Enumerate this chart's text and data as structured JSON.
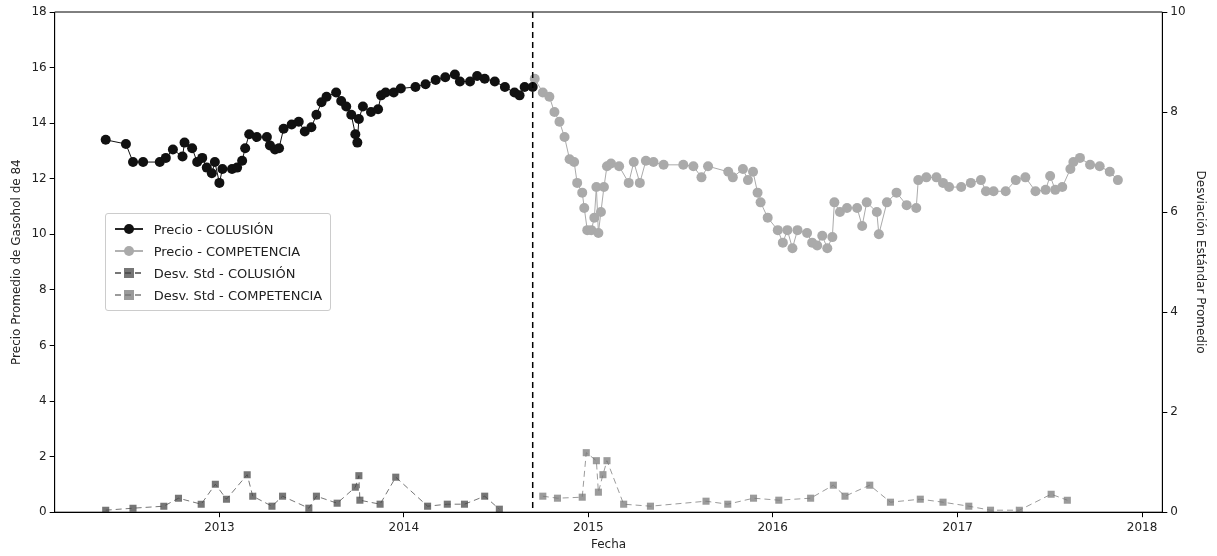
{
  "chart_data": {
    "type": "line",
    "xlabel": "Fecha",
    "ylabel": "Precio Promedio de Gasohol de 84",
    "y2label": "Desviación Estándar Promedio",
    "xlim": [
      "2012-02-10",
      "2018-02-10"
    ],
    "xticks": [
      "2013",
      "2014",
      "2015",
      "2016",
      "2017",
      "2018"
    ],
    "ylim": [
      0,
      18
    ],
    "yticks": [
      0,
      2,
      4,
      6,
      8,
      10,
      12,
      14,
      16,
      18
    ],
    "y2lim": [
      0,
      10
    ],
    "y2ticks": [
      0,
      2,
      4,
      6,
      8,
      10
    ],
    "grid": false,
    "legend": "left",
    "ref_lines": [
      {
        "axis": "x",
        "value": "2014-09-13",
        "label": null,
        "color": "#000000",
        "line_style": "dashed"
      }
    ],
    "series": [
      {
        "name": "Precio - COLUSIÓN",
        "color": "#111111",
        "marker": "circle",
        "line_style": "solid",
        "x": [
          "2012-05-21",
          "2012-06-30",
          "2012-07-14",
          "2012-08-03",
          "2012-09-05",
          "2012-09-17",
          "2012-10-01",
          "2012-10-20",
          "2012-10-24",
          "2012-11-08",
          "2012-11-18",
          "2012-11-28",
          "2012-12-07",
          "2012-12-17",
          "2012-12-23",
          "2013-01-01",
          "2013-01-07",
          "2013-01-26",
          "2013-02-05",
          "2013-02-15",
          "2013-02-21",
          "2013-03-01",
          "2013-03-16",
          "2013-04-05",
          "2013-04-11",
          "2013-04-21",
          "2013-04-29",
          "2013-05-08",
          "2013-05-24",
          "2013-06-07",
          "2013-06-19",
          "2013-07-02",
          "2013-07-12",
          "2013-07-22",
          "2013-08-01",
          "2013-08-20",
          "2013-08-30",
          "2013-09-09",
          "2013-09-19",
          "2013-09-27",
          "2013-10-01",
          "2013-10-04",
          "2013-10-12",
          "2013-10-28",
          "2013-11-11",
          "2013-11-17",
          "2013-11-26",
          "2013-12-12",
          "2013-12-26",
          "2014-01-24",
          "2014-02-13",
          "2014-03-05",
          "2014-03-24",
          "2014-04-12",
          "2014-04-22",
          "2014-05-12",
          "2014-05-26",
          "2014-06-10",
          "2014-06-30",
          "2014-07-20",
          "2014-08-08",
          "2014-08-18",
          "2014-08-28",
          "2014-09-13"
        ],
        "values": [
          13.4,
          13.25,
          12.6,
          12.6,
          12.6,
          12.75,
          13.05,
          12.8,
          13.3,
          13.1,
          12.6,
          12.75,
          12.4,
          12.2,
          12.6,
          11.85,
          12.35,
          12.35,
          12.4,
          12.65,
          13.1,
          13.6,
          13.5,
          13.5,
          13.2,
          13.05,
          13.1,
          13.8,
          13.95,
          14.05,
          13.7,
          13.85,
          14.3,
          14.75,
          14.95,
          15.1,
          14.8,
          14.6,
          14.3,
          13.6,
          13.3,
          14.15,
          14.6,
          14.4,
          14.5,
          15.0,
          15.1,
          15.1,
          15.25,
          15.3,
          15.4,
          15.55,
          15.65,
          15.75,
          15.5,
          15.5,
          15.7,
          15.6,
          15.5,
          15.3,
          15.1,
          15.0,
          15.3,
          15.3
        ]
      },
      {
        "name": "Precio - COMPETENCIA",
        "color": "#aaaaaa",
        "marker": "circle",
        "line_style": "solid",
        "x": [
          "2014-09-17",
          "2014-10-03",
          "2014-10-16",
          "2014-10-26",
          "2014-11-05",
          "2014-11-15",
          "2014-11-25",
          "2014-12-04",
          "2014-12-10",
          "2014-12-20",
          "2014-12-24",
          "2014-12-30",
          "2015-01-07",
          "2015-01-13",
          "2015-01-17",
          "2015-01-21",
          "2015-01-26",
          "2015-02-01",
          "2015-02-07",
          "2015-02-15",
          "2015-03-03",
          "2015-03-22",
          "2015-04-01",
          "2015-04-13",
          "2015-04-25",
          "2015-05-10",
          "2015-05-30",
          "2015-07-08",
          "2015-07-28",
          "2015-08-13",
          "2015-08-26",
          "2015-10-05",
          "2015-10-14",
          "2015-11-03",
          "2015-11-13",
          "2015-11-23",
          "2015-12-02",
          "2015-12-08",
          "2015-12-22",
          "2016-01-11",
          "2016-01-21",
          "2016-01-30",
          "2016-02-09",
          "2016-02-19",
          "2016-03-09",
          "2016-03-19",
          "2016-03-29",
          "2016-04-08",
          "2016-04-18",
          "2016-04-28",
          "2016-05-02",
          "2016-05-13",
          "2016-05-27",
          "2016-06-16",
          "2016-06-26",
          "2016-07-05",
          "2016-07-25",
          "2016-07-29",
          "2016-08-14",
          "2016-09-02",
          "2016-09-22",
          "2016-10-11",
          "2016-10-15",
          "2016-10-31",
          "2016-11-20",
          "2016-12-03",
          "2016-12-15",
          "2017-01-08",
          "2017-01-27",
          "2017-02-16",
          "2017-02-26",
          "2017-03-13",
          "2017-04-06",
          "2017-04-26",
          "2017-05-15",
          "2017-06-04",
          "2017-06-24",
          "2017-07-03",
          "2017-07-13",
          "2017-07-27",
          "2017-08-12",
          "2017-08-18",
          "2017-08-31",
          "2017-09-20",
          "2017-10-09",
          "2017-10-29",
          "2017-11-14"
        ],
        "values": [
          15.6,
          15.1,
          14.95,
          14.4,
          14.05,
          13.5,
          12.7,
          12.6,
          11.85,
          11.5,
          10.95,
          10.15,
          10.15,
          10.6,
          11.7,
          10.05,
          10.8,
          11.7,
          12.45,
          12.55,
          12.45,
          11.85,
          12.6,
          11.85,
          12.65,
          12.6,
          12.5,
          12.5,
          12.45,
          12.05,
          12.45,
          12.25,
          12.05,
          12.35,
          11.95,
          12.25,
          11.5,
          11.15,
          10.6,
          10.15,
          9.7,
          10.15,
          9.5,
          10.15,
          10.05,
          9.7,
          9.6,
          9.95,
          9.5,
          9.9,
          11.15,
          10.8,
          10.95,
          10.95,
          10.3,
          11.15,
          10.8,
          10.0,
          11.15,
          11.5,
          11.05,
          10.95,
          11.95,
          12.05,
          12.05,
          11.85,
          11.7,
          11.7,
          11.85,
          11.95,
          11.55,
          11.55,
          11.55,
          11.95,
          12.05,
          11.55,
          11.6,
          12.1,
          11.6,
          11.7,
          12.35,
          12.6,
          12.75,
          12.5,
          12.45,
          12.25,
          11.95
        ]
      },
      {
        "name": "Desv. Std - COLUSIÓN",
        "color": "#444444",
        "marker": "square",
        "line_style": "dashed",
        "axis": "y2",
        "x": [
          "2012-05-21",
          "2012-07-14",
          "2012-09-13",
          "2012-10-12",
          "2012-11-26",
          "2012-12-24",
          "2013-01-15",
          "2013-02-25",
          "2013-03-08",
          "2013-04-15",
          "2013-05-06",
          "2013-06-27",
          "2013-07-12",
          "2013-08-22",
          "2013-09-27",
          "2013-10-04",
          "2013-10-06",
          "2013-11-15",
          "2013-12-16",
          "2014-02-17",
          "2014-03-28",
          "2014-05-01",
          "2014-06-10",
          "2014-07-09"
        ],
        "values": [
          0.04,
          0.08,
          0.12,
          0.28,
          0.16,
          0.56,
          0.26,
          0.75,
          0.32,
          0.12,
          0.32,
          0.08,
          0.32,
          0.18,
          0.5,
          0.73,
          0.24,
          0.16,
          0.7,
          0.12,
          0.16,
          0.16,
          0.32,
          0.06
        ]
      },
      {
        "name": "Desv. Std - COMPETENCIA",
        "color": "#777777",
        "marker": "square",
        "line_style": "dashed",
        "axis": "y2",
        "x": [
          "2014-10-03",
          "2014-11-01",
          "2014-12-20",
          "2014-12-28",
          "2015-01-17",
          "2015-01-21",
          "2015-01-30",
          "2015-02-07",
          "2015-03-12",
          "2015-05-04",
          "2015-08-22",
          "2015-10-04",
          "2015-11-24",
          "2016-01-13",
          "2016-03-16",
          "2016-04-30",
          "2016-05-23",
          "2016-07-11",
          "2016-08-21",
          "2016-10-19",
          "2016-12-03",
          "2017-01-23",
          "2017-03-07",
          "2017-05-03",
          "2017-07-05",
          "2017-08-06"
        ],
        "values": [
          0.32,
          0.28,
          0.3,
          1.19,
          1.03,
          0.4,
          0.75,
          1.03,
          0.16,
          0.12,
          0.22,
          0.16,
          0.28,
          0.24,
          0.28,
          0.54,
          0.32,
          0.54,
          0.2,
          0.26,
          0.2,
          0.12,
          0.04,
          0.04,
          0.36,
          0.24
        ]
      }
    ]
  }
}
